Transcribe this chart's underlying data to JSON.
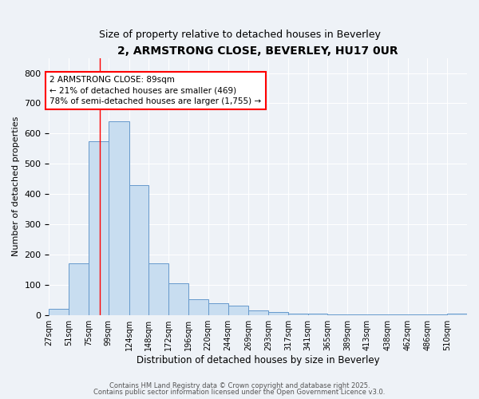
{
  "title_line1": "2, ARMSTRONG CLOSE, BEVERLEY, HU17 0UR",
  "title_line2": "Size of property relative to detached houses in Beverley",
  "xlabel": "Distribution of detached houses by size in Beverley",
  "ylabel": "Number of detached properties",
  "bar_color": "#c8ddf0",
  "bar_edge_color": "#6699cc",
  "bar_heights": [
    20,
    170,
    575,
    640,
    430,
    170,
    105,
    52,
    38,
    32,
    14,
    10,
    5,
    4,
    2,
    2,
    2,
    2,
    2,
    2,
    5
  ],
  "bin_edges": [
    27,
    51,
    75,
    99,
    124,
    148,
    172,
    196,
    220,
    244,
    269,
    293,
    317,
    341,
    365,
    389,
    413,
    438,
    462,
    486,
    510,
    534
  ],
  "tick_labels": [
    "27sqm",
    "51sqm",
    "75sqm",
    "99sqm",
    "124sqm",
    "148sqm",
    "172sqm",
    "196sqm",
    "220sqm",
    "244sqm",
    "269sqm",
    "293sqm",
    "317sqm",
    "341sqm",
    "365sqm",
    "389sqm",
    "413sqm",
    "438sqm",
    "462sqm",
    "486sqm",
    "510sqm"
  ],
  "ylim": [
    0,
    850
  ],
  "yticks": [
    0,
    100,
    200,
    300,
    400,
    500,
    600,
    700,
    800
  ],
  "red_line_x": 89,
  "annotation_text": "2 ARMSTRONG CLOSE: 89sqm\n← 21% of detached houses are smaller (469)\n78% of semi-detached houses are larger (1,755) →",
  "annotation_box_color": "white",
  "annotation_box_edge_color": "red",
  "bg_color": "#eef2f7",
  "grid_color": "#ffffff",
  "footer_line1": "Contains HM Land Registry data © Crown copyright and database right 2025.",
  "footer_line2": "Contains public sector information licensed under the Open Government Licence v3.0."
}
